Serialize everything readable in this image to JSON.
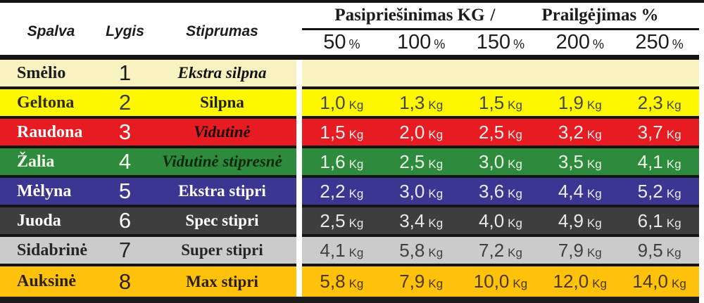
{
  "header": {
    "left_columns": {
      "spalva": "Spalva",
      "lygis": "Lygis",
      "stiprumas": "Stiprumas"
    },
    "resistance_title": "Pasipriešinimas KG",
    "slash": "/",
    "elongation_title": "Prailgėjimas %",
    "percent_ticks": [
      {
        "num": "50",
        "sym": "%"
      },
      {
        "num": "100",
        "sym": "%"
      },
      {
        "num": "150",
        "sym": "%"
      },
      {
        "num": "200",
        "sym": "%"
      },
      {
        "num": "250",
        "sym": "%"
      }
    ]
  },
  "unit_kg": "Kg",
  "colors": {
    "line": "#141414",
    "footer": "#1c1c1c",
    "separator": "#ffffff"
  },
  "rows": [
    {
      "name": "Smėlio",
      "level": "1",
      "strength": "Ekstra silpna",
      "italic": true,
      "bg": "#f7f2c0",
      "name_color": "#1c1c1c",
      "level_color": "#1c1c1c",
      "strength_color": "#121212",
      "value_color": "#1c1c1c",
      "values": []
    },
    {
      "name": "Geltona",
      "level": "2",
      "strength": "Silpna",
      "italic": false,
      "bg": "#fdf700",
      "name_color": "#322e00",
      "level_color": "#3a3a3a",
      "strength_color": "#1f1f1f",
      "value_color": "#454545",
      "values": [
        "1,0",
        "1,3",
        "1,5",
        "1,9",
        "2,3"
      ]
    },
    {
      "name": "Raudona",
      "level": "3",
      "strength": "Vidutinė",
      "italic": true,
      "bg": "#e71b22",
      "name_color": "#ffffff",
      "level_color": "#ffffff",
      "strength_color": "#170a0c",
      "value_color": "#fdeeee",
      "values": [
        "1,5",
        "2,0",
        "2,5",
        "3,2",
        "3,7"
      ]
    },
    {
      "name": "Žalia",
      "level": "4",
      "strength": "Vidutinė stipresnė",
      "italic": true,
      "bg": "#2e8b3e",
      "name_color": "#f2fbe8",
      "level_color": "#f2fbe8",
      "strength_color": "#0c290c",
      "value_color": "#eaf7e4",
      "values": [
        "1,6",
        "2,5",
        "3,0",
        "3,5",
        "4,1"
      ]
    },
    {
      "name": "Mėlyna",
      "level": "5",
      "strength": "Ekstra stipri",
      "italic": false,
      "bg": "#3b3692",
      "name_color": "#ffffff",
      "level_color": "#ffffff",
      "strength_color": "#ffffff",
      "value_color": "#ecebf7",
      "values": [
        "2,2",
        "3,0",
        "3,6",
        "4,4",
        "5,2"
      ]
    },
    {
      "name": "Juoda",
      "level": "6",
      "strength": "Spec stipri",
      "italic": false,
      "bg": "#3e3e3e",
      "name_color": "#ffffff",
      "level_color": "#ffffff",
      "strength_color": "#ffffff",
      "value_color": "#e8e8e8",
      "values": [
        "2,5",
        "3,4",
        "4,0",
        "4,9",
        "6,1"
      ]
    },
    {
      "name": "Sidabrinė",
      "level": "7",
      "strength": "Super stipri",
      "italic": false,
      "bg": "#cbcbcb",
      "name_color": "#262626",
      "level_color": "#262626",
      "strength_color": "#262626",
      "value_color": "#3f3f3f",
      "values": [
        "4,1",
        "5,8",
        "7,2",
        "7,9",
        "9,5"
      ]
    },
    {
      "name": "Auksinė",
      "level": "8",
      "strength": "Max stipri",
      "italic": false,
      "bg": "#fec20c",
      "name_color": "#2b1f00",
      "level_color": "#2b1f00",
      "strength_color": "#2b1f00",
      "value_color": "#4a3800",
      "values": [
        "5,8",
        "7,9",
        "10,0",
        "12,0",
        "14,0"
      ]
    }
  ],
  "chart_data": {
    "type": "table",
    "title": "Pasipriešinimas KG / Prailgėjimas %",
    "columns": [
      "Spalva",
      "Lygis",
      "Stiprumas",
      "50 %",
      "100 %",
      "150 %",
      "200 %",
      "250 %"
    ],
    "rows": [
      [
        "Smėlio",
        "1",
        "Ekstra silpna",
        "",
        "",
        "",
        "",
        ""
      ],
      [
        "Geltona",
        "2",
        "Silpna",
        "1,0 Kg",
        "1,3 Kg",
        "1,5 Kg",
        "1,9 Kg",
        "2,3 Kg"
      ],
      [
        "Raudona",
        "3",
        "Vidutinė",
        "1,5 Kg",
        "2,0 Kg",
        "2,5 Kg",
        "3,2 Kg",
        "3,7 Kg"
      ],
      [
        "Žalia",
        "4",
        "Vidutinė stipresnė",
        "1,6 Kg",
        "2,5 Kg",
        "3,0 Kg",
        "3,5 Kg",
        "4,1 Kg"
      ],
      [
        "Mėlyna",
        "5",
        "Ekstra stipri",
        "2,2 Kg",
        "3,0 Kg",
        "3,6 Kg",
        "4,4 Kg",
        "5,2 Kg"
      ],
      [
        "Juoda",
        "6",
        "Spec stipri",
        "2,5 Kg",
        "3,4 Kg",
        "4,0 Kg",
        "4,9 Kg",
        "6,1 Kg"
      ],
      [
        "Sidabrinė",
        "7",
        "Super stipri",
        "4,1 Kg",
        "5,8 Kg",
        "7,2 Kg",
        "7,9 Kg",
        "9,5 Kg"
      ],
      [
        "Auksinė",
        "8",
        "Max stipri",
        "5,8 Kg",
        "7,9 Kg",
        "10,0 Kg",
        "12,0 Kg",
        "14,0 Kg"
      ]
    ]
  }
}
